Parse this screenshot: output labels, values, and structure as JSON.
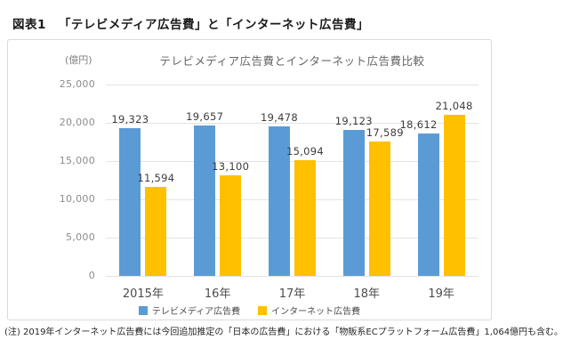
{
  "page": {
    "figure_label": "図表1",
    "figure_title": "「テレビメディア広告費」と「インターネット広告費」",
    "note": "(注) 2019年インターネット広告費には今回追加推定の「日本の広告費」における「物販系ECプラットフォーム広告費」1,064億円も含む。"
  },
  "chart_data": {
    "type": "bar",
    "title": "テレビメディア広告費とインターネット広告費比較",
    "unit_label": "(億円)",
    "categories": [
      "2015年",
      "16年",
      "17年",
      "18年",
      "19年"
    ],
    "series": [
      {
        "name": "テレビメディア広告費",
        "color": "#5B9BD5",
        "values": [
          19323,
          19657,
          19478,
          19123,
          18612
        ],
        "labels": [
          "19,323",
          "19,657",
          "19,478",
          "19,123",
          "18,612"
        ]
      },
      {
        "name": "インターネット広告費",
        "color": "#FFC000",
        "values": [
          11594,
          13100,
          15094,
          17589,
          21048
        ],
        "labels": [
          "11,594",
          "13,100",
          "15,094",
          "17,589",
          "21,048"
        ]
      }
    ],
    "ylim": [
      0,
      25000
    ],
    "yticks": [
      {
        "value": 0,
        "label": "0"
      },
      {
        "value": 5000,
        "label": "5,000"
      },
      {
        "value": 10000,
        "label": "10,000"
      },
      {
        "value": 15000,
        "label": "15,000"
      },
      {
        "value": 20000,
        "label": "20,000"
      },
      {
        "value": 25000,
        "label": "25,000"
      }
    ],
    "grid": true,
    "legend_position": "bottom"
  }
}
